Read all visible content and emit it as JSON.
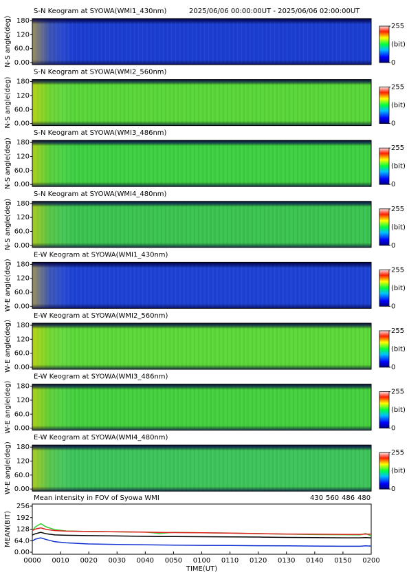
{
  "chart_data": [
    {
      "type": "heatmap",
      "title": "S-N Keogram at SYOWA(WMI1_430nm)",
      "subtitle": "2025/06/06 00:00:00UT - 2025/06/06 02:00:00UT",
      "ylabel": "N-S angle(deg)",
      "ylim": [
        0,
        180
      ],
      "yticks": [
        {
          "value": 0,
          "label": "0.00"
        },
        {
          "value": 60,
          "label": "60.0"
        },
        120,
        180
      ],
      "color": "#1c3fd2",
      "zlim": [
        0,
        255
      ],
      "zticks": [
        0,
        255
      ],
      "zlabel": "(bit)"
    },
    {
      "type": "heatmap",
      "title": "S-N Keogram at SYOWA(WMI2_560nm)",
      "ylabel": "N-S angle(deg)",
      "ylim": [
        0,
        180
      ],
      "yticks": [
        {
          "value": 0,
          "label": "0.00"
        },
        {
          "value": 60,
          "label": "60.0"
        },
        120,
        180
      ],
      "color": "#58d63a",
      "zlim": [
        0,
        255
      ],
      "zticks": [
        0,
        255
      ],
      "zlabel": "(bit)"
    },
    {
      "type": "heatmap",
      "title": "S-N Keogram at SYOWA(WMI3_486nm)",
      "ylabel": "N-S angle(deg)",
      "ylim": [
        0,
        180
      ],
      "yticks": [
        {
          "value": 0,
          "label": "0.00"
        },
        {
          "value": 60,
          "label": "60.0"
        },
        120,
        180
      ],
      "color": "#40d044",
      "zlim": [
        0,
        255
      ],
      "zticks": [
        0,
        255
      ],
      "zlabel": "(bit)"
    },
    {
      "type": "heatmap",
      "title": "S-N Keogram at SYOWA(WMI4_480nm)",
      "ylabel": "N-S angle(deg)",
      "ylim": [
        0,
        180
      ],
      "yticks": [
        {
          "value": 0,
          "label": "0.00"
        },
        {
          "value": 60,
          "label": "60.0"
        },
        120,
        180
      ],
      "color": "#3cc452",
      "zlim": [
        0,
        255
      ],
      "zticks": [
        0,
        255
      ],
      "zlabel": "(bit)"
    },
    {
      "type": "heatmap",
      "title": "E-W Keogram at SYOWA(WMI1_430nm)",
      "ylabel": "W-E angle(deg)",
      "ylim": [
        0,
        180
      ],
      "yticks": [
        {
          "value": 0,
          "label": "0.00"
        },
        {
          "value": 60,
          "label": "60.0"
        },
        120,
        180
      ],
      "color": "#1e42d4",
      "zlim": [
        0,
        255
      ],
      "zticks": [
        0,
        255
      ],
      "zlabel": "(bit)"
    },
    {
      "type": "heatmap",
      "title": "E-W Keogram at SYOWA(WMI2_560nm)",
      "ylabel": "W-E angle(deg)",
      "ylim": [
        0,
        180
      ],
      "yticks": [
        {
          "value": 0,
          "label": "0.00"
        },
        {
          "value": 60,
          "label": "60.0"
        },
        120,
        180
      ],
      "color": "#5cd83a",
      "zlim": [
        0,
        255
      ],
      "zticks": [
        0,
        255
      ],
      "zlabel": "(bit)"
    },
    {
      "type": "heatmap",
      "title": "E-W Keogram at SYOWA(WMI3_486nm)",
      "ylabel": "W-E angle(deg)",
      "ylim": [
        0,
        180
      ],
      "yticks": [
        {
          "value": 0,
          "label": "0.00"
        },
        {
          "value": 60,
          "label": "60.0"
        },
        120,
        180
      ],
      "color": "#46d040",
      "zlim": [
        0,
        255
      ],
      "zticks": [
        0,
        255
      ],
      "zlabel": "(bit)"
    },
    {
      "type": "heatmap",
      "title": "E-W Keogram at SYOWA(WMI4_480nm)",
      "ylabel": "W-E angle(deg)",
      "ylim": [
        0,
        180
      ],
      "yticks": [
        {
          "value": 0,
          "label": "0.00"
        },
        {
          "value": 60,
          "label": "60.0"
        },
        120,
        180
      ],
      "color": "#3ec45a",
      "zlim": [
        0,
        255
      ],
      "zticks": [
        0,
        255
      ],
      "zlabel": "(bit)"
    },
    {
      "type": "line",
      "title": "Mean intensity in FOV of Syowa WMI",
      "ylabel": "MEAN(BIT)",
      "xlabel": "TIME(UT)",
      "x": [
        0,
        1,
        3,
        5,
        8,
        12,
        20,
        30,
        40,
        45,
        50,
        60,
        70,
        80,
        90,
        100,
        110,
        116,
        118,
        120
      ],
      "xlim": [
        0,
        120
      ],
      "xticks": [
        {
          "value": 0,
          "label": "0000"
        },
        {
          "value": 10,
          "label": "0010"
        },
        {
          "value": 20,
          "label": "0020"
        },
        {
          "value": 30,
          "label": "0030"
        },
        {
          "value": 40,
          "label": "0040"
        },
        {
          "value": 50,
          "label": "0050"
        },
        {
          "value": 60,
          "label": "0100"
        },
        {
          "value": 70,
          "label": "0110"
        },
        {
          "value": 80,
          "label": "0120"
        },
        {
          "value": 90,
          "label": "0130"
        },
        {
          "value": 100,
          "label": "0140"
        },
        {
          "value": 110,
          "label": "0150"
        },
        {
          "value": 120,
          "label": "0200"
        }
      ],
      "ylim": [
        0,
        256
      ],
      "yticks": [
        {
          "value": 0,
          "label": "0.00"
        },
        {
          "value": 64,
          "label": "64.0"
        },
        128,
        192,
        256
      ],
      "series": [
        {
          "name": "430",
          "color": "#1030d0",
          "values": [
            62,
            72,
            80,
            70,
            58,
            52,
            46,
            43,
            41,
            40,
            39,
            38,
            37,
            36,
            35,
            34,
            33,
            33,
            35,
            34
          ]
        },
        {
          "name": "560",
          "color": "#30d030",
          "values": [
            118,
            140,
            158,
            140,
            125,
            118,
            115,
            113,
            112,
            104,
            110,
            108,
            106,
            103,
            100,
            98,
            97,
            96,
            104,
            90
          ]
        },
        {
          "name": "486",
          "color": "#e02020",
          "values": [
            120,
            128,
            135,
            126,
            120,
            117,
            115,
            113,
            111,
            110,
            109,
            108,
            106,
            103,
            101,
            100,
            99,
            99,
            101,
            100
          ]
        },
        {
          "name": "480",
          "color": "#000000",
          "values": [
            95,
            102,
            110,
            102,
            96,
            94,
            92,
            90,
            88,
            87,
            87,
            86,
            85,
            84,
            82,
            81,
            80,
            80,
            81,
            80
          ]
        }
      ]
    }
  ]
}
